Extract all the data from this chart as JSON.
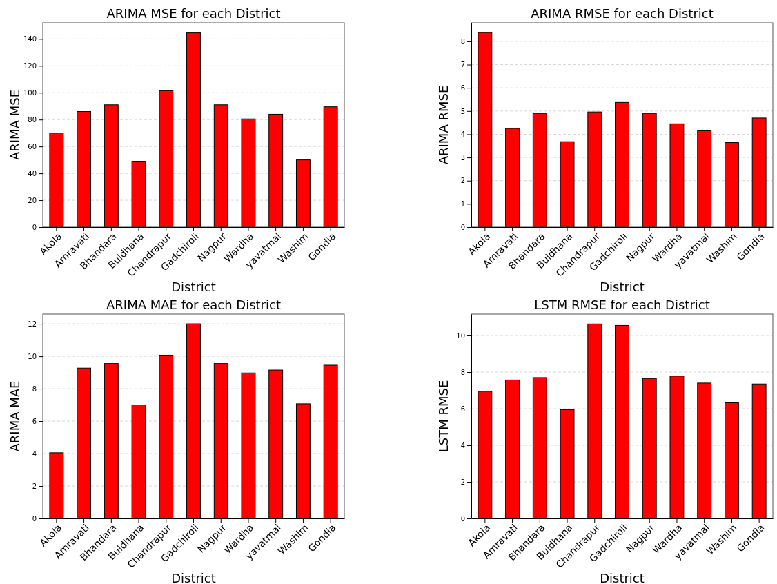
{
  "chart_data": [
    {
      "type": "bar",
      "title": "ARIMA MSE for each District",
      "xlabel": "District",
      "ylabel": "ARIMA MSE",
      "categories": [
        "Akola",
        "Amravati",
        "Bhandara",
        "Buldhana",
        "Chandrapur",
        "Gadchiroli",
        "Nagpur",
        "Wardha",
        "yavatmal",
        "Washim",
        "Gondia"
      ],
      "values": [
        70,
        86,
        91,
        49,
        101.5,
        144.5,
        91,
        80.5,
        84,
        50,
        89.5
      ],
      "color": "#ff0000",
      "ylim": [
        0,
        152
      ],
      "yticks": [
        0,
        20,
        40,
        60,
        80,
        100,
        120,
        140
      ],
      "grid": "y"
    },
    {
      "type": "bar",
      "title": "ARIMA RMSE for each District",
      "xlabel": "District",
      "ylabel": "ARIMA RMSE",
      "categories": [
        "Akola",
        "Amravati",
        "Bhandara",
        "Buldhana",
        "Chandrapur",
        "Gadchiroli",
        "Nagpur",
        "Wardha",
        "yavatmal",
        "Washim",
        "Gondia"
      ],
      "values": [
        8.38,
        4.25,
        4.9,
        3.68,
        4.96,
        5.37,
        4.9,
        4.45,
        4.15,
        3.64,
        4.7
      ],
      "color": "#ff0000",
      "ylim": [
        0,
        8.8
      ],
      "yticks": [
        0,
        1,
        2,
        3,
        4,
        5,
        6,
        7,
        8
      ],
      "grid": "y"
    },
    {
      "type": "bar",
      "title": "ARIMA MAE for each District",
      "xlabel": "District",
      "ylabel": "ARIMA MAE",
      "categories": [
        "Akola",
        "Amravati",
        "Bhandara",
        "Buldhana",
        "Chandrapur",
        "Gadchiroli",
        "Nagpur",
        "Wardha",
        "yavatmal",
        "Washim",
        "Gondia"
      ],
      "values": [
        4.05,
        9.27,
        9.55,
        7.0,
        10.07,
        12.0,
        9.55,
        8.97,
        9.15,
        7.07,
        9.45
      ],
      "color": "#ff0000",
      "ylim": [
        0,
        12.6
      ],
      "yticks": [
        0,
        2,
        4,
        6,
        8,
        10,
        12
      ],
      "grid": "y"
    },
    {
      "type": "bar",
      "title": "LSTM RMSE for each District",
      "xlabel": "District",
      "ylabel": "LSTM RMSE",
      "categories": [
        "Akola",
        "Amravati",
        "Bhandara",
        "Buldhana",
        "Chandrapur",
        "Gadchiroli",
        "Nagpur",
        "Wardha",
        "yavatmal",
        "Washim",
        "Gondia"
      ],
      "values": [
        6.95,
        7.57,
        7.7,
        5.95,
        10.63,
        10.55,
        7.65,
        7.78,
        7.4,
        6.32,
        7.35
      ],
      "color": "#ff0000",
      "ylim": [
        0,
        11.17
      ],
      "yticks": [
        0,
        2,
        4,
        6,
        8,
        10
      ],
      "grid": "y"
    }
  ]
}
